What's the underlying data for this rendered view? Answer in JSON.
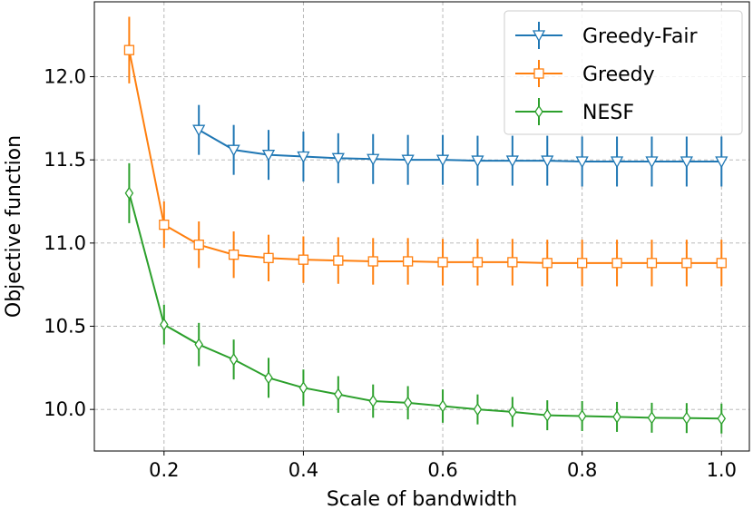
{
  "chart_data": {
    "type": "line",
    "title": "",
    "xlabel": "Scale of bandwidth",
    "ylabel": "Objective function",
    "xlim": [
      0.1,
      1.04
    ],
    "ylim": [
      9.75,
      12.45
    ],
    "xticks": [
      0.2,
      0.4,
      0.6,
      0.8,
      1.0
    ],
    "xtick_labels": [
      "0.2",
      "0.4",
      "0.6",
      "0.8",
      "1.0"
    ],
    "yticks": [
      10.0,
      10.5,
      11.0,
      11.5,
      12.0
    ],
    "ytick_labels": [
      "10.0",
      "10.5",
      "11.0",
      "11.5",
      "12.0"
    ],
    "grid": true,
    "legend_position": "top-right",
    "series": [
      {
        "name": "Greedy-Fair",
        "color": "#1f77b4",
        "marker": "triangle-down",
        "x": [
          0.25,
          0.3,
          0.35,
          0.4,
          0.45,
          0.5,
          0.55,
          0.6,
          0.65,
          0.7,
          0.75,
          0.8,
          0.85,
          0.9,
          0.95,
          1.0
        ],
        "y": [
          11.68,
          11.56,
          11.53,
          11.52,
          11.51,
          11.505,
          11.5,
          11.5,
          11.495,
          11.495,
          11.495,
          11.49,
          11.49,
          11.49,
          11.49,
          11.49
        ],
        "err": [
          0.15,
          0.15,
          0.15,
          0.15,
          0.15,
          0.15,
          0.15,
          0.15,
          0.15,
          0.15,
          0.15,
          0.15,
          0.15,
          0.15,
          0.15,
          0.15
        ]
      },
      {
        "name": "Greedy",
        "color": "#ff7f0e",
        "marker": "square",
        "x": [
          0.15,
          0.2,
          0.25,
          0.3,
          0.35,
          0.4,
          0.45,
          0.5,
          0.55,
          0.6,
          0.65,
          0.7,
          0.75,
          0.8,
          0.85,
          0.9,
          0.95,
          1.0
        ],
        "y": [
          12.16,
          11.11,
          10.99,
          10.93,
          10.91,
          10.9,
          10.895,
          10.89,
          10.89,
          10.885,
          10.885,
          10.885,
          10.88,
          10.88,
          10.88,
          10.88,
          10.88,
          10.88
        ],
        "err": [
          0.2,
          0.14,
          0.14,
          0.14,
          0.14,
          0.14,
          0.14,
          0.14,
          0.14,
          0.14,
          0.14,
          0.14,
          0.14,
          0.14,
          0.14,
          0.14,
          0.14,
          0.14
        ]
      },
      {
        "name": "NESF",
        "color": "#2ca02c",
        "marker": "diamond",
        "x": [
          0.15,
          0.2,
          0.25,
          0.3,
          0.35,
          0.4,
          0.45,
          0.5,
          0.55,
          0.6,
          0.65,
          0.7,
          0.75,
          0.8,
          0.85,
          0.9,
          0.95,
          1.0
        ],
        "y": [
          11.3,
          10.51,
          10.39,
          10.3,
          10.19,
          10.13,
          10.09,
          10.05,
          10.04,
          10.02,
          10.0,
          9.985,
          9.965,
          9.96,
          9.955,
          9.95,
          9.948,
          9.945
        ],
        "err": [
          0.18,
          0.12,
          0.13,
          0.12,
          0.12,
          0.11,
          0.11,
          0.1,
          0.1,
          0.1,
          0.09,
          0.09,
          0.09,
          0.09,
          0.09,
          0.09,
          0.09,
          0.09
        ]
      }
    ]
  }
}
